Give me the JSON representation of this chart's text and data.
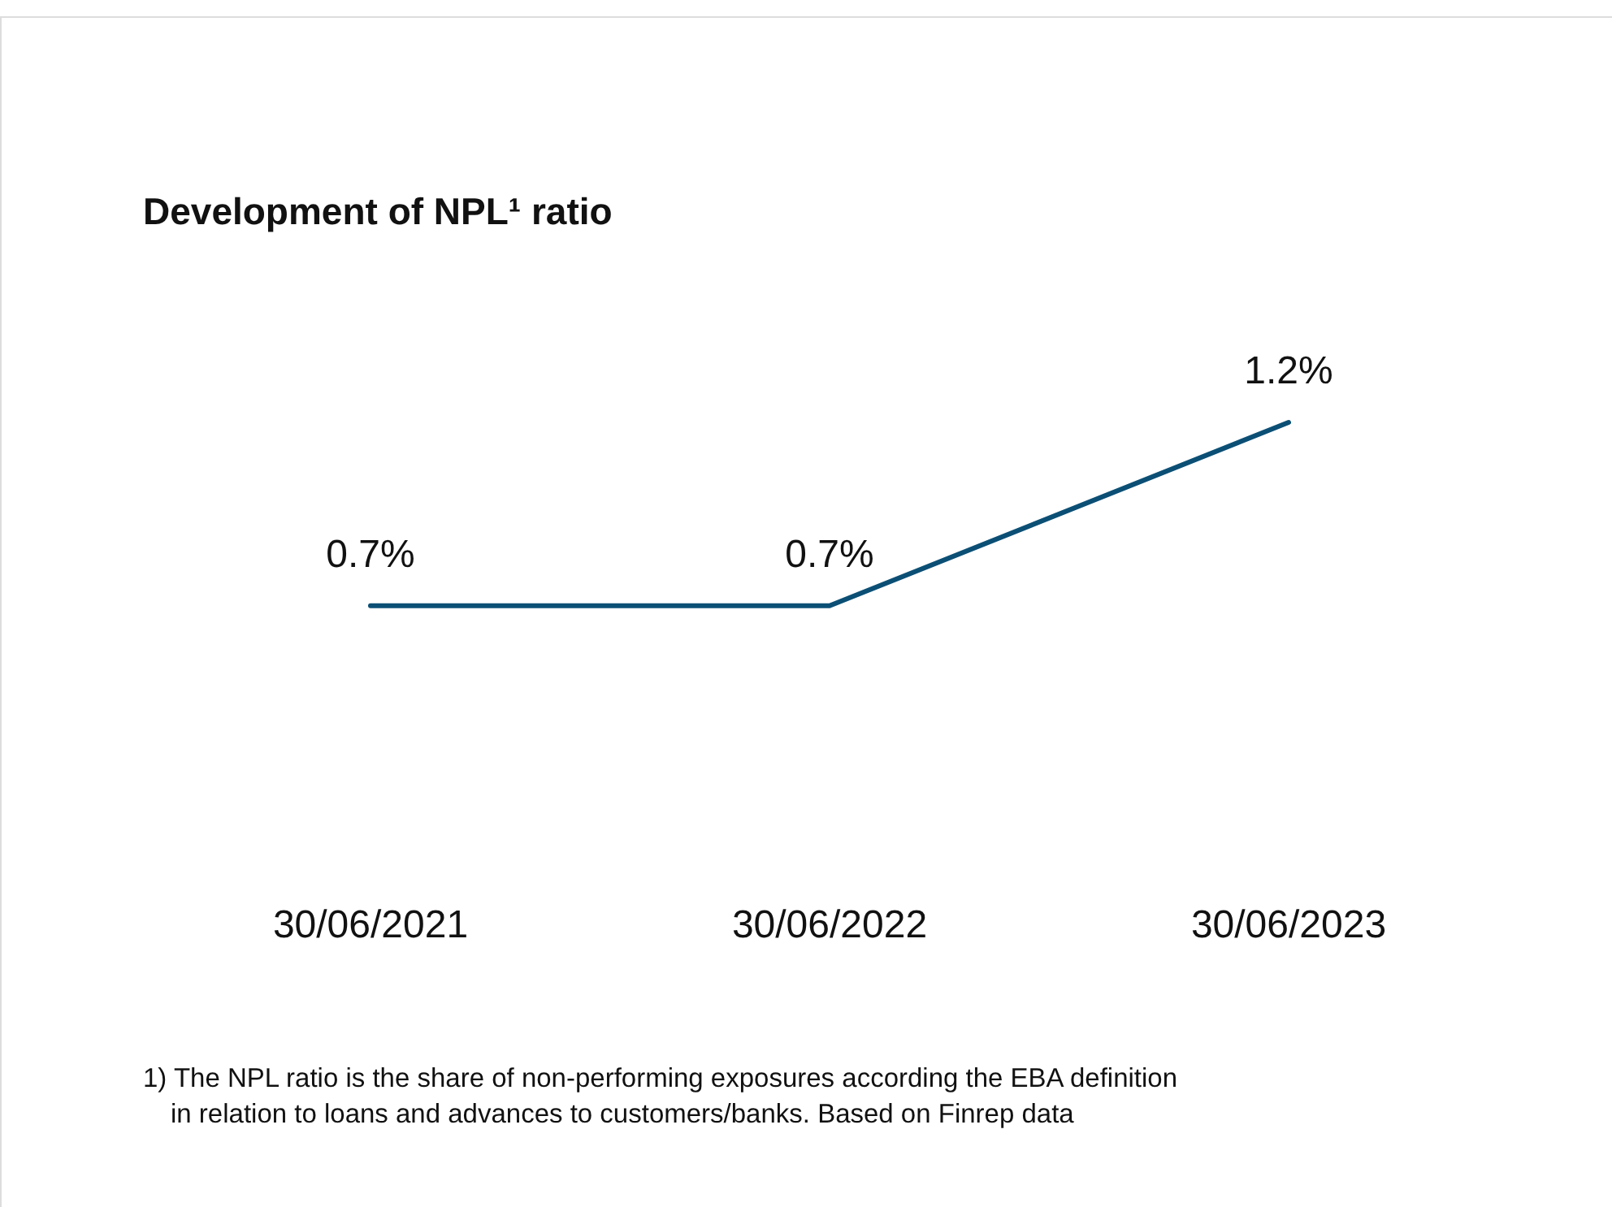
{
  "chart_data": {
    "type": "line",
    "title": "Development of NPL¹ ratio",
    "categories": [
      "30/06/2021",
      "30/06/2022",
      "30/06/2023"
    ],
    "values": [
      0.7,
      0.7,
      1.2
    ],
    "color": "#0b4f75",
    "data_labels": true,
    "value_labels": [
      "0.7%",
      "0.7%",
      "1.2%"
    ],
    "annotations": [
      "1) The NPL ratio is the share of non-performing exposures according the EBA definition in relation to loans and advances to customers/banks. Based on Finrep data"
    ]
  }
}
